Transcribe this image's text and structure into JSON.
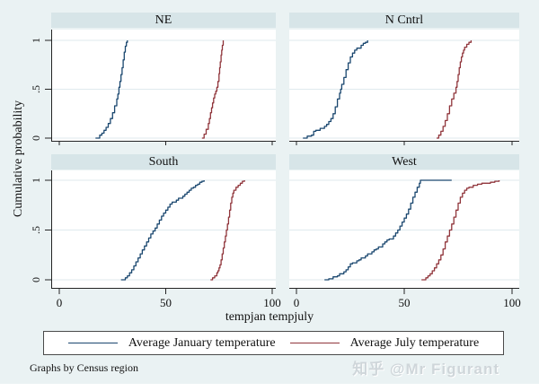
{
  "figure": {
    "ylabel": "Cumulative probability",
    "xlabel": "tempjan tempjuly",
    "note": "Graphs by Census region",
    "watermark": "知乎 @Mr Figurant",
    "colors": {
      "canvas": "#eaf2f3",
      "panel_title_bg": "#d7e5e8",
      "plot_bg": "#ffffff",
      "gridline": "#dfeaee",
      "axis": "#242424",
      "january": "#1a476f",
      "july": "#90353b",
      "watermark_gray": "#cfd6da"
    }
  },
  "chart_data": {
    "type": "line",
    "subtype": "empirical-cdf-step",
    "title": "",
    "xlabel": "tempjan tempjuly",
    "ylabel": "Cumulative probability",
    "xlim": [
      -4,
      103
    ],
    "ylim": [
      0,
      1
    ],
    "grid": "horizontal",
    "legend_position": "bottom-box",
    "x_ticks": [
      0,
      50,
      100
    ],
    "y_ticks": [
      {
        "value": 0,
        "label": "0"
      },
      {
        "value": 0.5,
        "label": ".5"
      },
      {
        "value": 1,
        "label": "1"
      }
    ],
    "legend_items": [
      {
        "key": "january",
        "label": "Average January temperature"
      },
      {
        "key": "july",
        "label": "Average July temperature"
      }
    ],
    "panels": [
      {
        "title": "NE",
        "series": [
          {
            "key": "january",
            "name": "Average January temperature",
            "points": [
              [
                17,
                0
              ],
              [
                19,
                0.03
              ],
              [
                20,
                0.05
              ],
              [
                21,
                0.08
              ],
              [
                22,
                0.11
              ],
              [
                23,
                0.15
              ],
              [
                24,
                0.2
              ],
              [
                25,
                0.26
              ],
              [
                26,
                0.33
              ],
              [
                27,
                0.4
              ],
              [
                27.5,
                0.45
              ],
              [
                28,
                0.52
              ],
              [
                28.5,
                0.58
              ],
              [
                29,
                0.65
              ],
              [
                29.5,
                0.72
              ],
              [
                30,
                0.8
              ],
              [
                30.5,
                0.88
              ],
              [
                31,
                0.94
              ],
              [
                31.5,
                0.98
              ],
              [
                32,
                1
              ]
            ]
          },
          {
            "key": "july",
            "name": "Average July temperature",
            "points": [
              [
                67,
                0
              ],
              [
                68,
                0.04
              ],
              [
                69,
                0.09
              ],
              [
                70,
                0.15
              ],
              [
                70.5,
                0.2
              ],
              [
                71,
                0.26
              ],
              [
                71.5,
                0.31
              ],
              [
                72,
                0.36
              ],
              [
                72.5,
                0.41
              ],
              [
                73,
                0.45
              ],
              [
                73.5,
                0.48
              ],
              [
                74,
                0.52
              ],
              [
                74.5,
                0.58
              ],
              [
                75,
                0.66
              ],
              [
                75.3,
                0.72
              ],
              [
                75.6,
                0.78
              ],
              [
                76,
                0.85
              ],
              [
                76.3,
                0.9
              ],
              [
                76.6,
                0.95
              ],
              [
                77,
                1
              ]
            ]
          }
        ]
      },
      {
        "title": "N Cntrl",
        "series": [
          {
            "key": "january",
            "name": "Average January temperature",
            "points": [
              [
                3,
                0
              ],
              [
                5,
                0.02
              ],
              [
                7,
                0.03
              ],
              [
                8,
                0.07
              ],
              [
                9,
                0.08
              ],
              [
                11,
                0.1
              ],
              [
                13,
                0.12
              ],
              [
                14,
                0.14
              ],
              [
                15,
                0.17
              ],
              [
                16,
                0.2
              ],
              [
                17,
                0.25
              ],
              [
                18,
                0.32
              ],
              [
                19,
                0.4
              ],
              [
                20,
                0.46
              ],
              [
                20.5,
                0.5
              ],
              [
                21,
                0.55
              ],
              [
                22,
                0.62
              ],
              [
                23,
                0.7
              ],
              [
                24,
                0.77
              ],
              [
                25,
                0.83
              ],
              [
                26,
                0.87
              ],
              [
                27,
                0.9
              ],
              [
                28,
                0.92
              ],
              [
                30,
                0.95
              ],
              [
                31,
                0.97
              ],
              [
                32,
                0.98
              ],
              [
                33,
                1
              ]
            ]
          },
          {
            "key": "july",
            "name": "Average July temperature",
            "points": [
              [
                65,
                0
              ],
              [
                66,
                0.03
              ],
              [
                67,
                0.07
              ],
              [
                68,
                0.12
              ],
              [
                69,
                0.18
              ],
              [
                70,
                0.25
              ],
              [
                71,
                0.33
              ],
              [
                72,
                0.4
              ],
              [
                73,
                0.46
              ],
              [
                74,
                0.52
              ],
              [
                74.5,
                0.58
              ],
              [
                75,
                0.65
              ],
              [
                75.5,
                0.72
              ],
              [
                76,
                0.78
              ],
              [
                76.5,
                0.83
              ],
              [
                77,
                0.87
              ],
              [
                77.5,
                0.9
              ],
              [
                78,
                0.93
              ],
              [
                79,
                0.96
              ],
              [
                80,
                0.98
              ],
              [
                81,
                1
              ]
            ]
          }
        ]
      },
      {
        "title": "South",
        "series": [
          {
            "key": "january",
            "name": "Average January temperature",
            "points": [
              [
                29,
                0
              ],
              [
                31,
                0.02
              ],
              [
                32,
                0.04
              ],
              [
                33,
                0.07
              ],
              [
                34,
                0.1
              ],
              [
                35,
                0.14
              ],
              [
                36,
                0.18
              ],
              [
                37,
                0.22
              ],
              [
                38,
                0.26
              ],
              [
                39,
                0.3
              ],
              [
                40,
                0.34
              ],
              [
                41,
                0.38
              ],
              [
                42,
                0.42
              ],
              [
                43,
                0.46
              ],
              [
                44,
                0.49
              ],
              [
                45,
                0.52
              ],
              [
                46,
                0.56
              ],
              [
                47,
                0.6
              ],
              [
                48,
                0.64
              ],
              [
                49,
                0.67
              ],
              [
                50,
                0.7
              ],
              [
                51,
                0.73
              ],
              [
                52,
                0.76
              ],
              [
                53,
                0.78
              ],
              [
                55,
                0.8
              ],
              [
                56,
                0.82
              ],
              [
                58,
                0.84
              ],
              [
                59,
                0.86
              ],
              [
                60,
                0.88
              ],
              [
                61,
                0.9
              ],
              [
                62,
                0.92
              ],
              [
                63,
                0.93
              ],
              [
                64,
                0.95
              ],
              [
                65,
                0.96
              ],
              [
                66,
                0.98
              ],
              [
                67,
                0.99
              ],
              [
                68,
                1
              ]
            ]
          },
          {
            "key": "july",
            "name": "Average July temperature",
            "points": [
              [
                71,
                0
              ],
              [
                72,
                0.02
              ],
              [
                73,
                0.04
              ],
              [
                74,
                0.07
              ],
              [
                74.5,
                0.09
              ],
              [
                75,
                0.12
              ],
              [
                75.5,
                0.15
              ],
              [
                76,
                0.2
              ],
              [
                76.5,
                0.26
              ],
              [
                77,
                0.32
              ],
              [
                77.5,
                0.38
              ],
              [
                78,
                0.44
              ],
              [
                78.5,
                0.5
              ],
              [
                79,
                0.56
              ],
              [
                79.5,
                0.63
              ],
              [
                80,
                0.7
              ],
              [
                80.5,
                0.77
              ],
              [
                81,
                0.83
              ],
              [
                81.5,
                0.87
              ],
              [
                82,
                0.9
              ],
              [
                83,
                0.93
              ],
              [
                84,
                0.95
              ],
              [
                85,
                0.97
              ],
              [
                86,
                0.99
              ],
              [
                87,
                1
              ]
            ]
          }
        ]
      },
      {
        "title": "West",
        "series": [
          {
            "key": "january",
            "name": "Average January temperature",
            "points": [
              [
                13,
                0
              ],
              [
                15,
                0.01
              ],
              [
                17,
                0.03
              ],
              [
                19,
                0.04
              ],
              [
                20,
                0.06
              ],
              [
                22,
                0.08
              ],
              [
                23,
                0.1
              ],
              [
                24,
                0.13
              ],
              [
                25,
                0.16
              ],
              [
                26,
                0.17
              ],
              [
                28,
                0.19
              ],
              [
                29,
                0.2
              ],
              [
                30,
                0.22
              ],
              [
                32,
                0.24
              ],
              [
                33,
                0.26
              ],
              [
                35,
                0.28
              ],
              [
                36,
                0.3
              ],
              [
                37,
                0.31
              ],
              [
                38,
                0.33
              ],
              [
                40,
                0.36
              ],
              [
                41,
                0.38
              ],
              [
                42,
                0.4
              ],
              [
                43,
                0.41
              ],
              [
                45,
                0.44
              ],
              [
                46,
                0.47
              ],
              [
                47,
                0.5
              ],
              [
                48,
                0.54
              ],
              [
                49,
                0.58
              ],
              [
                50,
                0.62
              ],
              [
                51,
                0.66
              ],
              [
                52,
                0.71
              ],
              [
                53,
                0.77
              ],
              [
                54,
                0.83
              ],
              [
                55,
                0.88
              ],
              [
                56,
                0.93
              ],
              [
                57,
                0.97
              ],
              [
                57.5,
                1
              ],
              [
                72,
                1
              ]
            ]
          },
          {
            "key": "july",
            "name": "Average July temperature",
            "points": [
              [
                58,
                0
              ],
              [
                60,
                0.02
              ],
              [
                61,
                0.04
              ],
              [
                62,
                0.06
              ],
              [
                63,
                0.09
              ],
              [
                64,
                0.12
              ],
              [
                65,
                0.16
              ],
              [
                66,
                0.2
              ],
              [
                67,
                0.25
              ],
              [
                68,
                0.31
              ],
              [
                69,
                0.38
              ],
              [
                70,
                0.44
              ],
              [
                71,
                0.5
              ],
              [
                72,
                0.56
              ],
              [
                73,
                0.63
              ],
              [
                74,
                0.7
              ],
              [
                75,
                0.77
              ],
              [
                76,
                0.83
              ],
              [
                77,
                0.87
              ],
              [
                78,
                0.9
              ],
              [
                79,
                0.92
              ],
              [
                80,
                0.93
              ],
              [
                82,
                0.95
              ],
              [
                84,
                0.96
              ],
              [
                86,
                0.97
              ],
              [
                88,
                0.97
              ],
              [
                90,
                0.98
              ],
              [
                92,
                0.99
              ],
              [
                94,
                1
              ]
            ]
          }
        ]
      }
    ]
  }
}
